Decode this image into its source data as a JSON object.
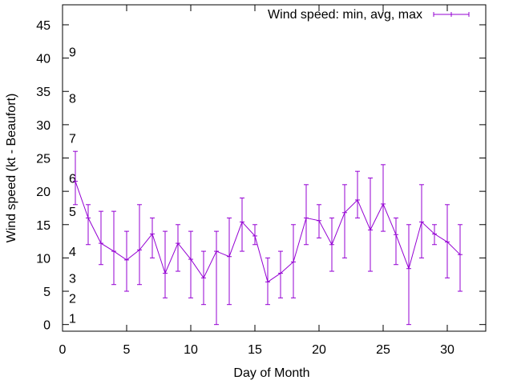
{
  "chart_data": {
    "type": "line",
    "title": "",
    "xlabel": "Day of Month",
    "ylabel": "Wind speed (kt - Beaufort)",
    "xlim": [
      0,
      33
    ],
    "ylim": [
      -1,
      48
    ],
    "xticks": [
      0,
      5,
      10,
      15,
      20,
      25,
      30
    ],
    "yticks": [
      0,
      5,
      10,
      15,
      20,
      25,
      30,
      35,
      40,
      45
    ],
    "grid": false,
    "legend_position": "top-right",
    "series": [
      {
        "name": "Wind speed: min, avg, max",
        "color": "#9400d3",
        "x": [
          1,
          2,
          3,
          4,
          5,
          6,
          7,
          8,
          9,
          10,
          11,
          12,
          13,
          14,
          15,
          16,
          17,
          18,
          19,
          20,
          21,
          22,
          23,
          24,
          25,
          26,
          27,
          28,
          29,
          30,
          31
        ],
        "avg": [
          21.5,
          16,
          12.2,
          11,
          9.7,
          11.2,
          13.6,
          7.7,
          12.2,
          9.8,
          7,
          11,
          10.2,
          15.4,
          13.3,
          6.4,
          7.7,
          9.4,
          16,
          15.6,
          12,
          16.8,
          18.7,
          14.2,
          18.1,
          13.5,
          8.4,
          15.4,
          13.6,
          12.4,
          10.5
        ],
        "min": [
          18,
          12,
          9,
          6,
          5,
          6,
          10,
          4,
          8,
          4,
          3,
          0,
          3,
          11,
          12,
          3,
          4,
          4,
          12,
          13,
          8,
          10,
          16,
          8,
          14,
          9,
          0,
          10,
          12,
          7,
          5
        ],
        "max": [
          26,
          18,
          17,
          17,
          14,
          18,
          16,
          14,
          15,
          14,
          11,
          14,
          16,
          19,
          15,
          10,
          11,
          15,
          21,
          18,
          16,
          21,
          23,
          22,
          24,
          16,
          15,
          21,
          15,
          18,
          15
        ]
      }
    ],
    "beaufort_labels": [
      {
        "label": "1",
        "value": 1
      },
      {
        "label": "2",
        "value": 4
      },
      {
        "label": "3",
        "value": 7
      },
      {
        "label": "4",
        "value": 11
      },
      {
        "label": "5",
        "value": 17
      },
      {
        "label": "6",
        "value": 22
      },
      {
        "label": "7",
        "value": 28
      },
      {
        "label": "8",
        "value": 34
      },
      {
        "label": "9",
        "value": 41
      }
    ]
  }
}
